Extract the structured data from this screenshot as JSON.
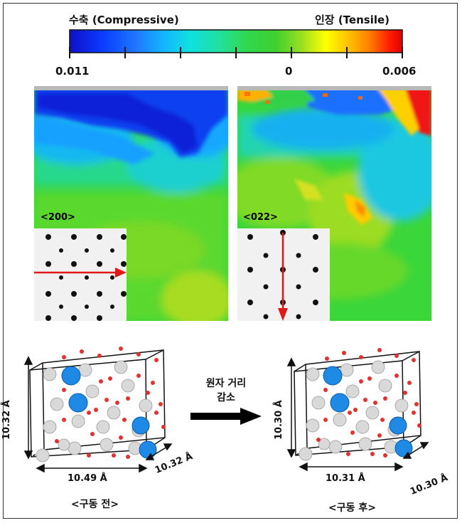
{
  "colorbar": {
    "left_title": "수축 (Compressive)",
    "right_title": "인장 (Tensile)",
    "tick_left": "0.011",
    "tick_mid": "0",
    "tick_right": "0.006",
    "colors": [
      "#1010c8",
      "#0a3cff",
      "#1e78ff",
      "#14b4ff",
      "#10e0e0",
      "#20e0a0",
      "#30d850",
      "#40d030",
      "#9ee020",
      "#ffff00",
      "#ffc000",
      "#ff8000",
      "#ff2000",
      "#e00000"
    ]
  },
  "maps": [
    {
      "orientation": "<200>",
      "arrow": "horizontal"
    },
    {
      "orientation": "<022>",
      "arrow": "vertical"
    }
  ],
  "left_cell": {
    "height_label": "10.32 Å",
    "width_label": "10.49 Å",
    "depth_label": "10.32 Å",
    "caption": "<구동 전>"
  },
  "right_cell": {
    "height_label": "10.30 Å",
    "width_label": "10.31 Å",
    "depth_label": "10.30 Å",
    "caption": "<구동 후>"
  },
  "transition": {
    "line1": "원자 거리",
    "line2": "감소"
  }
}
